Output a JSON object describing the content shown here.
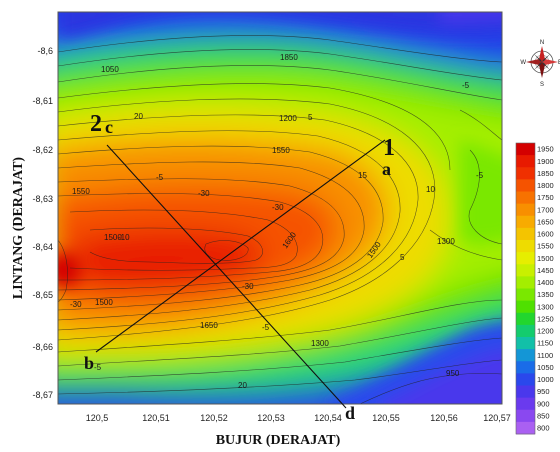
{
  "map": {
    "xlabel": "BUJUR (DERAJAT)",
    "ylabel": "LINTANG (DERAJAT)",
    "x_ticks": [
      "120,5",
      "120,51",
      "120,52",
      "120,53",
      "120,54",
      "120,55",
      "120,56",
      "120,57"
    ],
    "y_ticks": [
      "-8,6",
      "-8,61",
      "-8,62",
      "-8,63",
      "-8,64",
      "-8,65",
      "-8,66",
      "-8,67"
    ],
    "profiles": [
      {
        "number": "1",
        "start": "a",
        "end": "b"
      },
      {
        "number": "2",
        "start": "c",
        "end": "d"
      }
    ],
    "contour_labels": [
      "1050",
      "1850",
      "1200",
      "1550",
      "1550",
      "1500",
      "1500",
      "1600",
      "1500",
      "1300",
      "1650",
      "1300",
      "950",
      "20",
      "5",
      "-5",
      "-30",
      "-30",
      "-30",
      "-30",
      "-5",
      "5",
      "20",
      "15",
      "-5",
      "-5",
      "10",
      "-5",
      "-10"
    ]
  },
  "legend": {
    "values": [
      "1950",
      "1900",
      "1850",
      "1800",
      "1750",
      "1700",
      "1650",
      "1600",
      "1550",
      "1500",
      "1450",
      "1400",
      "1350",
      "1300",
      "1250",
      "1200",
      "1150",
      "1100",
      "1050",
      "1000",
      "950",
      "900",
      "850",
      "800"
    ],
    "colors": [
      "#d40000",
      "#e81a00",
      "#f03000",
      "#f55300",
      "#f77200",
      "#f88f00",
      "#f8ab00",
      "#f4c400",
      "#eedc00",
      "#e6ee00",
      "#c8f000",
      "#a4ee00",
      "#7ae800",
      "#4fe000",
      "#22d62e",
      "#14cc6e",
      "#12c0a8",
      "#1496d6",
      "#1a6ce8",
      "#2a48ec",
      "#4a38ec",
      "#6a3aee",
      "#8a48f0",
      "#aa60f2"
    ]
  },
  "compass": {
    "north": "N",
    "south": "S",
    "east": "E",
    "west": "W"
  }
}
